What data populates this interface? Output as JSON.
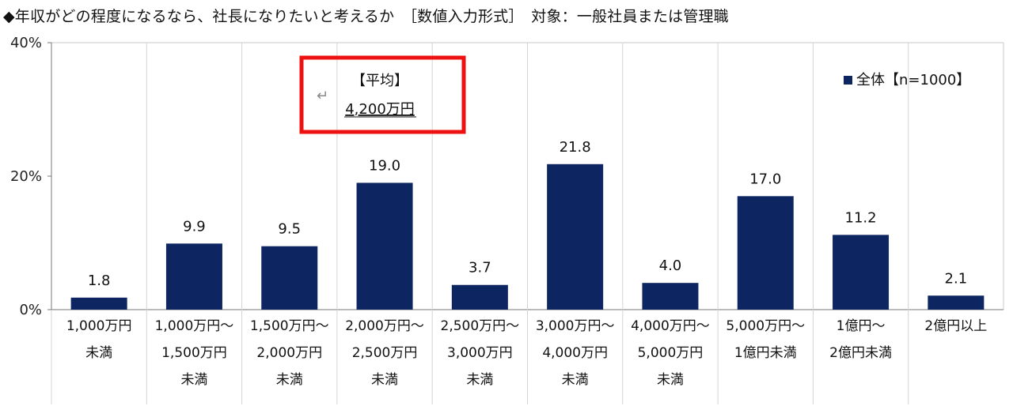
{
  "chart_data": {
    "type": "bar",
    "title": "◆年収がどの程度になるなら、社長になりたいと考えるか　［数値入力形式］　対象：一般社員または管理職",
    "categories": [
      [
        "1,000万円",
        "未満"
      ],
      [
        "1,000万円～",
        "1,500万円",
        "未満"
      ],
      [
        "1,500万円～",
        "2,000万円",
        "未満"
      ],
      [
        "2,000万円～",
        "2,500万円",
        "未満"
      ],
      [
        "2,500万円～",
        "3,000万円",
        "未満"
      ],
      [
        "3,000万円～",
        "4,000万円",
        "未満"
      ],
      [
        "4,000万円～",
        "5,000万円",
        "未満"
      ],
      [
        "5,000万円～",
        "1億円未満"
      ],
      [
        "1億円～",
        "2億円未満"
      ],
      [
        "2億円以上"
      ]
    ],
    "series": [
      {
        "name": "全体【n=1000】",
        "values": [
          1.8,
          9.9,
          9.5,
          19.0,
          3.7,
          21.8,
          4.0,
          17.0,
          11.2,
          2.1
        ],
        "value_labels": [
          "1.8",
          "9.9",
          "9.5",
          "19.0",
          "3.7",
          "21.8",
          "4.0",
          "17.0",
          "11.2",
          "2.1"
        ],
        "color": "#0d2561"
      }
    ],
    "y_ticks": [
      "0%",
      "20%",
      "40%"
    ],
    "ylim": [
      0,
      40
    ],
    "legend_position": "top-right",
    "annotation": {
      "title": "【平均】",
      "value": "4,200万円",
      "return_mark": "↵",
      "border_color": "#ee1111"
    },
    "grid": false
  }
}
